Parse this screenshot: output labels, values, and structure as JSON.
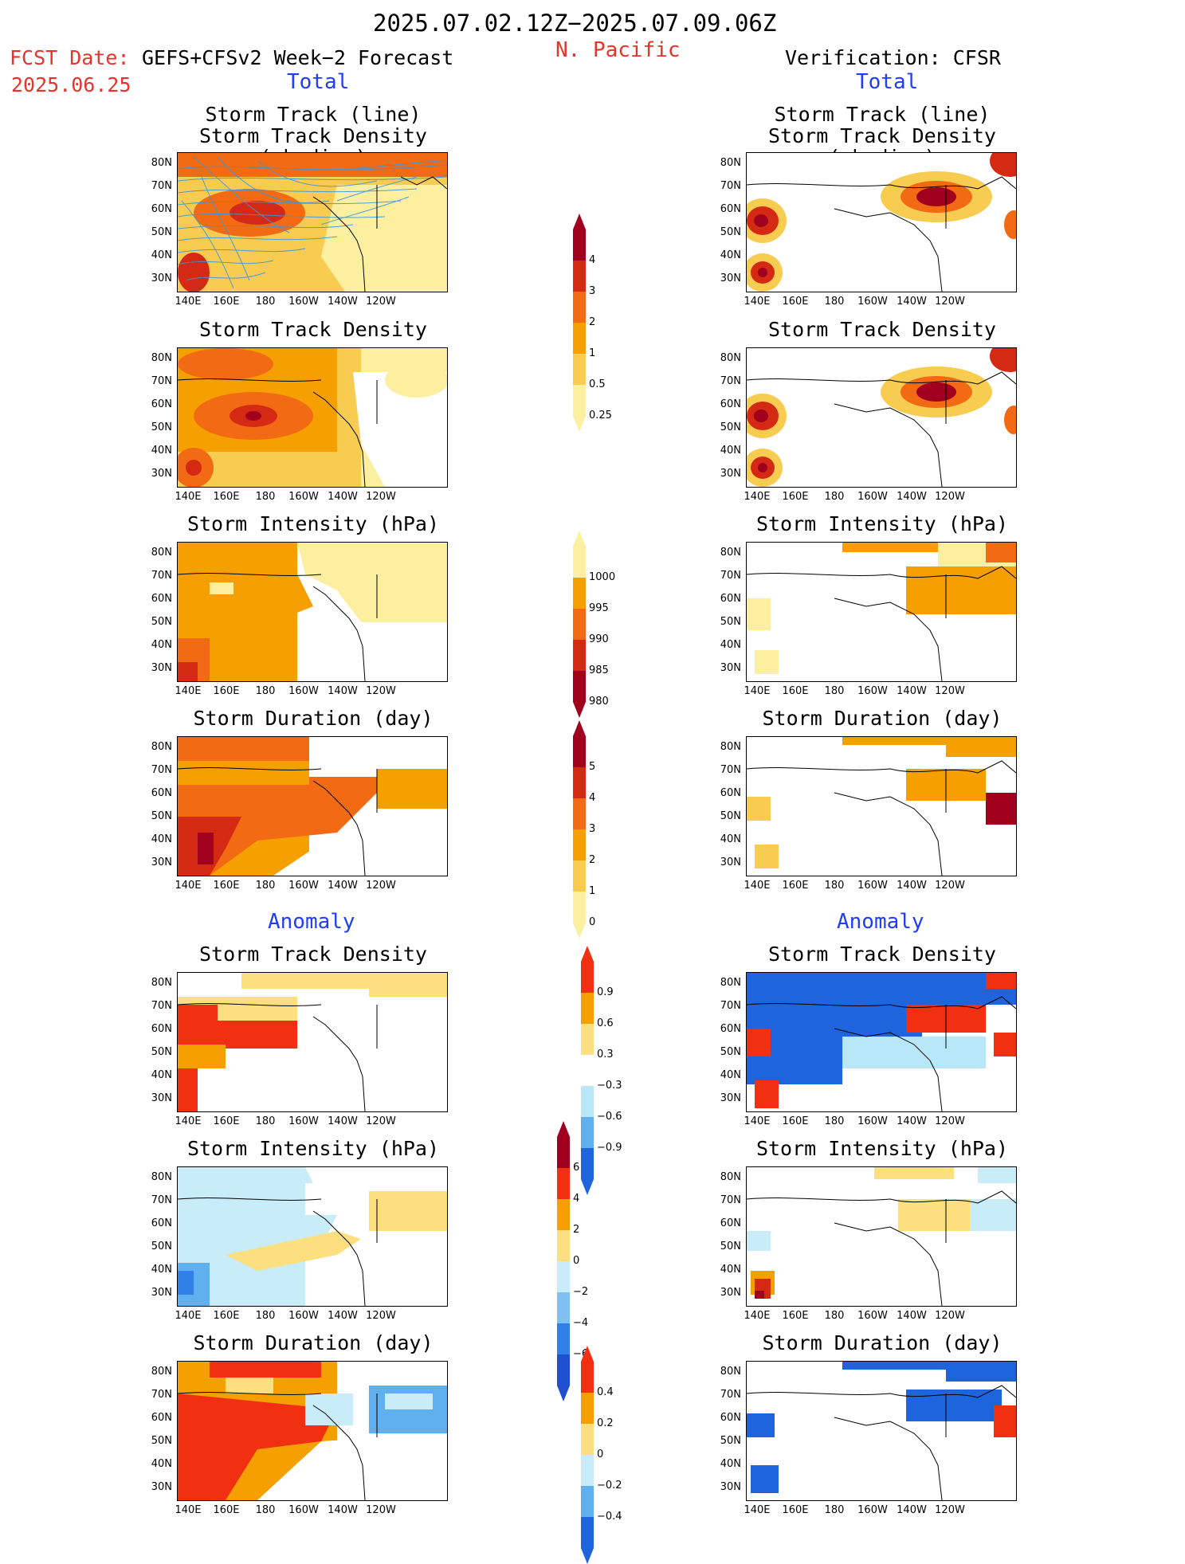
{
  "header": {
    "date_range": "2025.07.02.12Z−2025.07.09.06Z",
    "region": "N. Pacific",
    "fcst_label": "FCST Date:",
    "fcst_model": "GEFS+CFSv2 Week−2 Forecast",
    "fcst_date": "2025.06.25",
    "verification": "Verification: CFSR"
  },
  "sections": {
    "total": "Total",
    "anomaly": "Anomaly"
  },
  "axes": {
    "lat_labels": [
      "80N",
      "70N",
      "60N",
      "50N",
      "40N",
      "30N"
    ],
    "lon_labels": [
      "140E",
      "160E",
      "180",
      "160W",
      "140W",
      "120W"
    ]
  },
  "panels": {
    "track_line_title_1": "Storm Track (line)",
    "track_line_title_2": "Storm Track Density (shading)",
    "density": "Storm Track Density",
    "intensity": "Storm Intensity (hPa)",
    "duration": "Storm Duration (day)"
  },
  "colorbars": {
    "density_total": {
      "labels": [
        "4",
        "3",
        "2",
        "1",
        "0.5",
        "0.25"
      ],
      "colors": [
        "#a0001e",
        "#d42a14",
        "#f26a14",
        "#f5a000",
        "#f8cc50",
        "#fcf0a0"
      ]
    },
    "intensity_total": {
      "labels": [
        "1000",
        "995",
        "990",
        "985",
        "980"
      ],
      "colors": [
        "#fcf0a0",
        "#f5a000",
        "#f26a14",
        "#d42a14",
        "#a0001e"
      ]
    },
    "duration_total": {
      "labels": [
        "5",
        "4",
        "3",
        "2",
        "1",
        "0"
      ],
      "colors": [
        "#a0001e",
        "#d42a14",
        "#f26a14",
        "#f5a000",
        "#f8cc50",
        "#fcf0a0"
      ]
    },
    "density_anom": {
      "labels": [
        "0.9",
        "0.6",
        "0.3",
        "−0.3",
        "−0.6",
        "−0.9"
      ],
      "colors": [
        "#f03010",
        "#f5a000",
        "#fce080",
        "#ffffff",
        "#b8e8f8",
        "#60b0f0",
        "#1e64dc"
      ]
    },
    "intensity_anom": {
      "labels": [
        "6",
        "4",
        "2",
        "0",
        "−2",
        "−4",
        "−6"
      ],
      "colors": [
        "#a0001e",
        "#f03010",
        "#f5a000",
        "#fce080",
        "#c8ecf8",
        "#80c0f0",
        "#3080e8",
        "#1e50d0"
      ]
    },
    "duration_anom": {
      "labels": [
        "0.4",
        "0.2",
        "0",
        "−0.2",
        "−0.4"
      ],
      "colors": [
        "#f03010",
        "#f5a000",
        "#fce080",
        "#c8ecf8",
        "#60b0f0",
        "#1e64dc"
      ]
    }
  }
}
